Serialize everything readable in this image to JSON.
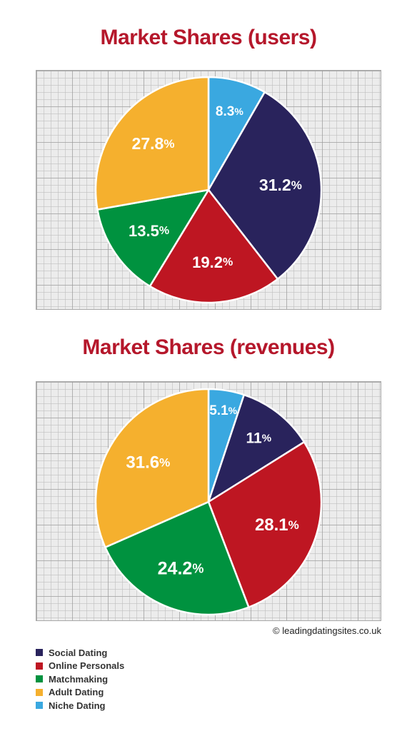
{
  "chart_data": [
    {
      "type": "pie",
      "title": "Market Shares (users)",
      "categories": [
        "Niche Dating",
        "Social Dating",
        "Online Personals",
        "Matchmaking",
        "Adult Dating"
      ],
      "values": [
        8.3,
        31.2,
        19.2,
        13.5,
        27.8
      ],
      "labels": [
        "8.3%",
        "31.2%",
        "19.2%",
        "13.5%",
        "27.8%"
      ],
      "colors": [
        "#3aa8e0",
        "#29235c",
        "#be1622",
        "#00923f",
        "#f5b02e"
      ]
    },
    {
      "type": "pie",
      "title": "Market Shares (revenues)",
      "categories": [
        "Niche Dating",
        "Social Dating",
        "Online Personals",
        "Matchmaking",
        "Adult Dating"
      ],
      "values": [
        5.1,
        11,
        28.1,
        24.2,
        31.6
      ],
      "labels": [
        "5.1%",
        "11%",
        "28.1%",
        "24.2%",
        "31.6%"
      ],
      "colors": [
        "#3aa8e0",
        "#29235c",
        "#be1622",
        "#00923f",
        "#f5b02e"
      ]
    }
  ],
  "copyright": "© leadingdatingsites.co.uk",
  "legend": [
    {
      "label": "Social Dating",
      "color": "#29235c"
    },
    {
      "label": "Online Personals",
      "color": "#be1622"
    },
    {
      "label": "Matchmaking",
      "color": "#00923f"
    },
    {
      "label": "Adult Dating",
      "color": "#f5b02e"
    },
    {
      "label": "Niche Dating",
      "color": "#3aa8e0"
    }
  ]
}
